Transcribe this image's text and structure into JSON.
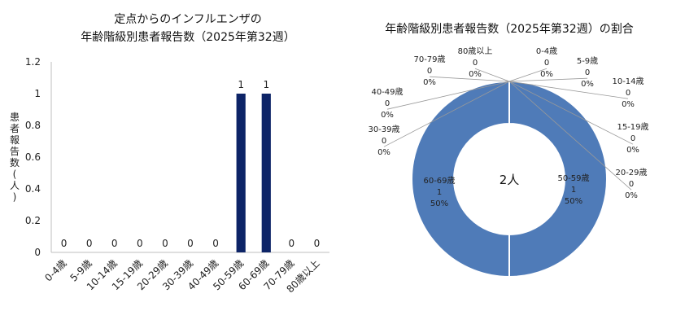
{
  "colors": {
    "bar": "#0d2467",
    "donut": "#4f7bb8",
    "leader": "#999999",
    "gridline": "#d9d9d9"
  },
  "chart_data": [
    {
      "type": "bar",
      "title": [
        "定点からのインフルエンザの",
        "年齢階級別患者報告数（2025年第32週）"
      ],
      "ylabel": "患者報告数(人)",
      "xlabel": "",
      "ylim": [
        0,
        1.2
      ],
      "yticks": [
        "0",
        "0.2",
        "0.4",
        "0.6",
        "0.8",
        "1",
        "1.2"
      ],
      "grid": false,
      "categories": [
        "0-4歳",
        "5-9歳",
        "10-14歳",
        "15-19歳",
        "20-29歳",
        "30-39歳",
        "40-49歳",
        "50-59歳",
        "60-69歳",
        "70-79歳",
        "80歳以上"
      ],
      "values": [
        0,
        0,
        0,
        0,
        0,
        0,
        0,
        1,
        1,
        0,
        0
      ],
      "value_labels": [
        "0",
        "0",
        "0",
        "0",
        "0",
        "0",
        "0",
        "1",
        "1",
        "0",
        "0"
      ]
    },
    {
      "type": "pie",
      "style": "donut",
      "title": "年齢階級別患者報告数（2025年第32週）の割合",
      "center_label": "2人",
      "categories": [
        "0-4歳",
        "5-9歳",
        "10-14歳",
        "15-19歳",
        "20-29歳",
        "30-39歳",
        "40-49歳",
        "50-59歳",
        "60-69歳",
        "70-79歳",
        "80歳以上"
      ],
      "values": [
        0,
        0,
        0,
        0,
        0,
        0,
        0,
        1,
        1,
        0,
        0
      ],
      "counts": [
        "0",
        "0",
        "0",
        "0",
        "0",
        "0",
        "0",
        "1",
        "1",
        "0",
        "0"
      ],
      "percents": [
        "0%",
        "0%",
        "0%",
        "0%",
        "0%",
        "0%",
        "0%",
        "50%",
        "50%",
        "0%",
        "0%"
      ]
    }
  ]
}
